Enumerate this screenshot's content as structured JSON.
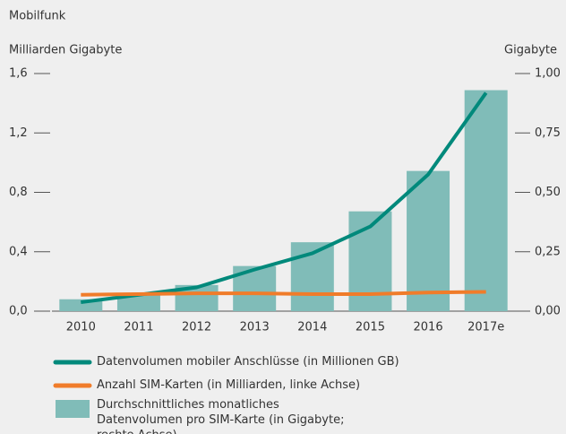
{
  "chart_data": {
    "type": "bar",
    "title": "Mobilfunk",
    "y_label": "Milliarden Gigabyte",
    "y2_label": "Gigabyte",
    "categories": [
      "2010",
      "2011",
      "2012",
      "2013",
      "2014",
      "2015",
      "2016",
      "2017e"
    ],
    "series": [
      {
        "name": "Datenvolumen mobiler Anschlüsse (in Millionen GB)",
        "type": "line",
        "axis": "y",
        "color": "#00897b",
        "values": [
          0.06,
          0.11,
          0.16,
          0.28,
          0.39,
          0.57,
          0.92,
          1.47
        ]
      },
      {
        "name": "Anzahl SIM-Karten (in Milliarden, linke Achse)",
        "type": "line",
        "axis": "y",
        "color": "#f07c2a",
        "values": [
          0.11,
          0.115,
          0.12,
          0.12,
          0.115,
          0.115,
          0.125,
          0.13
        ]
      },
      {
        "name": "Durchschnittliches monatliches Datenvolumen pro SIM-Karte (in Gigabyte; rechte Achse)",
        "type": "bar",
        "axis": "y2",
        "color": "#80bcb8",
        "values": [
          0.05,
          0.075,
          0.11,
          0.19,
          0.29,
          0.42,
          0.59,
          0.93
        ]
      }
    ],
    "ylim": [
      0,
      1.6
    ],
    "yticks": [
      {
        "value": 0,
        "label": "0,0"
      },
      {
        "value": 0.4,
        "label": "0,4"
      },
      {
        "value": 0.8,
        "label": "0,8"
      },
      {
        "value": 1.2,
        "label": "1,2"
      },
      {
        "value": 1.6,
        "label": "1,6"
      }
    ],
    "y2lim": [
      0,
      1
    ],
    "y2ticks": [
      {
        "value": 0,
        "label": "0,00"
      },
      {
        "value": 0.25,
        "label": "0,25"
      },
      {
        "value": 0.5,
        "label": "0,50"
      },
      {
        "value": 0.75,
        "label": "0,75"
      },
      {
        "value": 1,
        "label": "1,00"
      }
    ]
  }
}
